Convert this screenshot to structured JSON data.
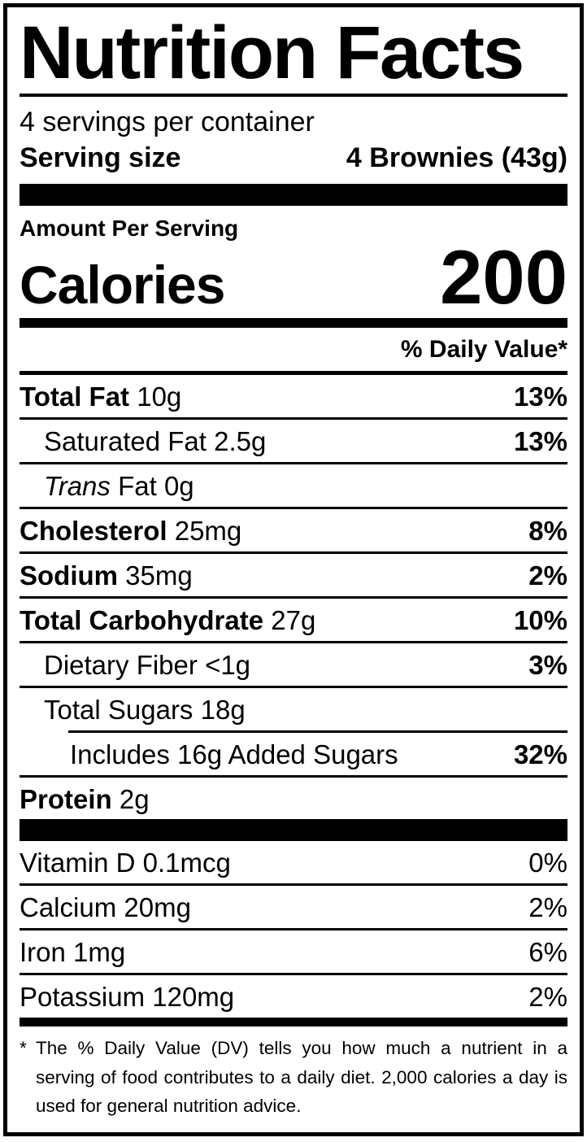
{
  "colors": {
    "text": "#000000",
    "background": "#ffffff",
    "border": "#000000"
  },
  "label": {
    "title": "Nutrition Facts",
    "servings_per_container": "4 servings per container",
    "serving_size_label": "Serving size",
    "serving_size_value": "4 Brownies (43g)",
    "amount_per_serving": "Amount Per Serving",
    "calories_label": "Calories",
    "calories_value": "200",
    "daily_value_header": "% Daily Value*",
    "nutrients": [
      {
        "name": "Total Fat",
        "amount": "10g",
        "dv": "13%",
        "bold": true,
        "indent": 0
      },
      {
        "name": "Saturated Fat",
        "amount": "2.5g",
        "dv": "13%",
        "bold": false,
        "indent": 1
      },
      {
        "name_italic": "Trans",
        "name": "Fat",
        "amount": "0g",
        "dv": "",
        "bold": false,
        "indent": 1
      },
      {
        "name": "Cholesterol",
        "amount": "25mg",
        "dv": "8%",
        "bold": true,
        "indent": 0
      },
      {
        "name": "Sodium",
        "amount": "35mg",
        "dv": "2%",
        "bold": true,
        "indent": 0
      },
      {
        "name": "Total Carbohydrate",
        "amount": "27g",
        "dv": "10%",
        "bold": true,
        "indent": 0
      },
      {
        "name": "Dietary Fiber",
        "amount": "<1g",
        "dv": "3%",
        "bold": false,
        "indent": 1
      },
      {
        "name": "Total Sugars",
        "amount": "18g",
        "dv": "",
        "bold": false,
        "indent": 1,
        "no_rule": true
      },
      {
        "name": "Includes 16g Added Sugars",
        "amount": "",
        "dv": "32%",
        "bold": false,
        "indent": 2,
        "partial_rule_before": true
      },
      {
        "name": "Protein",
        "amount": "2g",
        "dv": "",
        "bold": true,
        "indent": 0,
        "no_rule": true
      }
    ],
    "vitamins": [
      {
        "name": "Vitamin D",
        "amount": "0.1mcg",
        "dv": "0%"
      },
      {
        "name": "Calcium",
        "amount": "20mg",
        "dv": "2%"
      },
      {
        "name": "Iron",
        "amount": "1mg",
        "dv": "6%"
      },
      {
        "name": "Potassium",
        "amount": "120mg",
        "dv": "2%",
        "no_rule": true
      }
    ],
    "footnote_marker": "*",
    "footnote_text": "The % Daily Value (DV) tells you how much a nutrient in a serving of food contributes to a daily diet. 2,000 calories a day is used for general nutrition advice."
  }
}
